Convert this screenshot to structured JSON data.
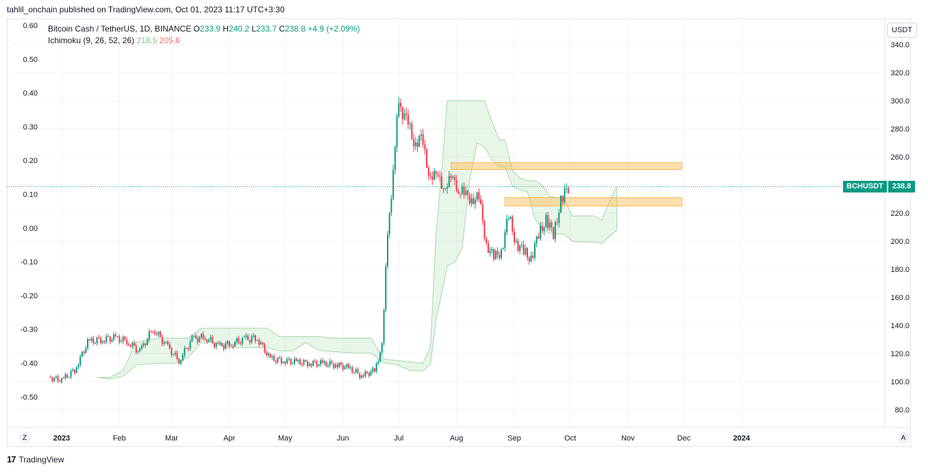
{
  "header": {
    "publisher_text": "tahlil_onchain published on TradingView.com, Oct 01, 2023 11:17 UTC+3:30"
  },
  "legend": {
    "symbol_line": "Bitcoin Cash / TetherUS, 1D, BINANCE",
    "o_label": "O",
    "o_value": "233.9",
    "h_label": "H",
    "h_value": "240.2",
    "l_label": "L",
    "l_value": "233.7",
    "c_label": "C",
    "c_value": "238.8",
    "change": "+4.9 (+2.09%)",
    "indicator_name": "Ichimoku (9, 26, 52, 26)",
    "indicator_v1": "218.5",
    "indicator_v2": "205.6"
  },
  "controls": {
    "currency": "USDT",
    "zoom_z": "Z",
    "auto_a": "A"
  },
  "price_tag": {
    "symbol": "BCHUSDT",
    "price": "238.8"
  },
  "footer": {
    "brand": "TradingView",
    "logo_mark": "17"
  },
  "colors": {
    "up": "#089981",
    "down": "#f23645",
    "zone": "#ffb74d",
    "cloud_up": "#a5d6a7",
    "cloud_down": "#ef9a9a"
  },
  "chart_data": {
    "type": "candlestick",
    "title": "Bitcoin Cash / TetherUS, 1D, BINANCE",
    "right_axis": {
      "ticks": [
        "340.0",
        "320.0",
        "300.0",
        "280.0",
        "260.0",
        "240.0",
        "220.0",
        "200.0",
        "180.0",
        "160.0",
        "140.0",
        "120.0",
        "100.0",
        "80.0"
      ],
      "range": [
        72,
        342
      ]
    },
    "left_axis": {
      "ticks": [
        "0.60",
        "0.50",
        "0.40",
        "0.30",
        "0.20",
        "0.10",
        "0.00",
        "-0.10",
        "-0.20",
        "-0.30",
        "-0.40",
        "-0.50"
      ],
      "range": [
        -0.55,
        0.6
      ]
    },
    "x_axis": {
      "labels": [
        "2023",
        "Feb",
        "Mar",
        "Apr",
        "May",
        "Jun",
        "Jul",
        "Aug",
        "Sep",
        "Oct",
        "Nov",
        "Dec",
        "2024"
      ]
    },
    "last_price": 238.8,
    "price_path": [
      {
        "date": "2022-12-25",
        "close": 103
      },
      {
        "date": "2023-01-01",
        "close": 101
      },
      {
        "date": "2023-01-08",
        "close": 108
      },
      {
        "date": "2023-01-15",
        "close": 128
      },
      {
        "date": "2023-01-22",
        "close": 130
      },
      {
        "date": "2023-01-29",
        "close": 131
      },
      {
        "date": "2023-02-05",
        "close": 129
      },
      {
        "date": "2023-02-12",
        "close": 121
      },
      {
        "date": "2023-02-19",
        "close": 138
      },
      {
        "date": "2023-02-26",
        "close": 126
      },
      {
        "date": "2023-03-05",
        "close": 115
      },
      {
        "date": "2023-03-12",
        "close": 130
      },
      {
        "date": "2023-03-19",
        "close": 132
      },
      {
        "date": "2023-03-26",
        "close": 125
      },
      {
        "date": "2023-04-02",
        "close": 127
      },
      {
        "date": "2023-04-09",
        "close": 130
      },
      {
        "date": "2023-04-16",
        "close": 131
      },
      {
        "date": "2023-04-23",
        "close": 116
      },
      {
        "date": "2023-04-30",
        "close": 115
      },
      {
        "date": "2023-05-07",
        "close": 114
      },
      {
        "date": "2023-05-14",
        "close": 113
      },
      {
        "date": "2023-05-21",
        "close": 113
      },
      {
        "date": "2023-05-28",
        "close": 112
      },
      {
        "date": "2023-06-04",
        "close": 110
      },
      {
        "date": "2023-06-11",
        "close": 104
      },
      {
        "date": "2023-06-18",
        "close": 108
      },
      {
        "date": "2023-06-22",
        "close": 125
      },
      {
        "date": "2023-06-25",
        "close": 205
      },
      {
        "date": "2023-06-28",
        "close": 250
      },
      {
        "date": "2023-07-01",
        "close": 300
      },
      {
        "date": "2023-07-05",
        "close": 285
      },
      {
        "date": "2023-07-09",
        "close": 272
      },
      {
        "date": "2023-07-13",
        "close": 272
      },
      {
        "date": "2023-07-17",
        "close": 250
      },
      {
        "date": "2023-07-21",
        "close": 245
      },
      {
        "date": "2023-07-25",
        "close": 240
      },
      {
        "date": "2023-07-29",
        "close": 243
      },
      {
        "date": "2023-08-01",
        "close": 240
      },
      {
        "date": "2023-08-05",
        "close": 232
      },
      {
        "date": "2023-08-09",
        "close": 231
      },
      {
        "date": "2023-08-13",
        "close": 230
      },
      {
        "date": "2023-08-17",
        "close": 198
      },
      {
        "date": "2023-08-21",
        "close": 188
      },
      {
        "date": "2023-08-25",
        "close": 193
      },
      {
        "date": "2023-08-29",
        "close": 218
      },
      {
        "date": "2023-09-02",
        "close": 198
      },
      {
        "date": "2023-09-06",
        "close": 193
      },
      {
        "date": "2023-09-10",
        "close": 187
      },
      {
        "date": "2023-09-14",
        "close": 205
      },
      {
        "date": "2023-09-18",
        "close": 215
      },
      {
        "date": "2023-09-22",
        "close": 205
      },
      {
        "date": "2023-09-26",
        "close": 228
      },
      {
        "date": "2023-09-30",
        "close": 238.8
      }
    ],
    "resistance_zones": [
      {
        "from": "2023-07-29",
        "to": "2023-11-30",
        "low": 251,
        "high": 256
      },
      {
        "from": "2023-08-27",
        "to": "2023-11-30",
        "low": 225,
        "high": 231
      }
    ]
  }
}
